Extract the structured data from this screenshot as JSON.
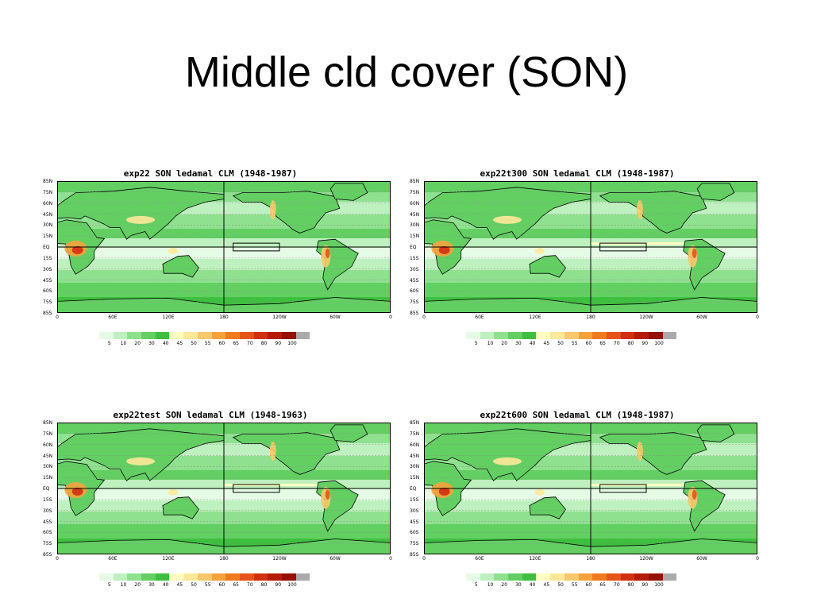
{
  "slide": {
    "title": "Middle cld cover (SON)"
  },
  "colors": {
    "scale": [
      "#e6fbe6",
      "#bff0bf",
      "#8fe08f",
      "#63cf63",
      "#3fbf3f",
      "#ffffc0",
      "#fde89a",
      "#f9c86a",
      "#f5a23c",
      "#f07a1e",
      "#e5541a",
      "#d13010",
      "#b51c08",
      "#961000",
      "#aaaaaa"
    ],
    "land_outline": "#000000"
  },
  "colorbar_labels": [
    "5",
    "10",
    "20",
    "30",
    "40",
    "45",
    "50",
    "55",
    "60",
    "65",
    "70",
    "80",
    "90",
    "100"
  ],
  "lat_labels": [
    "85N",
    "75N",
    "60N",
    "45N",
    "30N",
    "15N",
    "EQ",
    "15S",
    "30S",
    "45S",
    "60S",
    "75S",
    "85S"
  ],
  "lon_labels": [
    "0",
    "60E",
    "120E",
    "180",
    "120W",
    "60W",
    "0"
  ],
  "panels": [
    {
      "title": "exp22 SON ledamal CLM (1948-1987)"
    },
    {
      "title": "exp22t300 SON ledamal CLM (1948-1987)"
    },
    {
      "title": "exp22test SON ledamal CLM (1948-1963)"
    },
    {
      "title": "exp22t600 SON ledamal CLM (1948-1987)"
    }
  ]
}
